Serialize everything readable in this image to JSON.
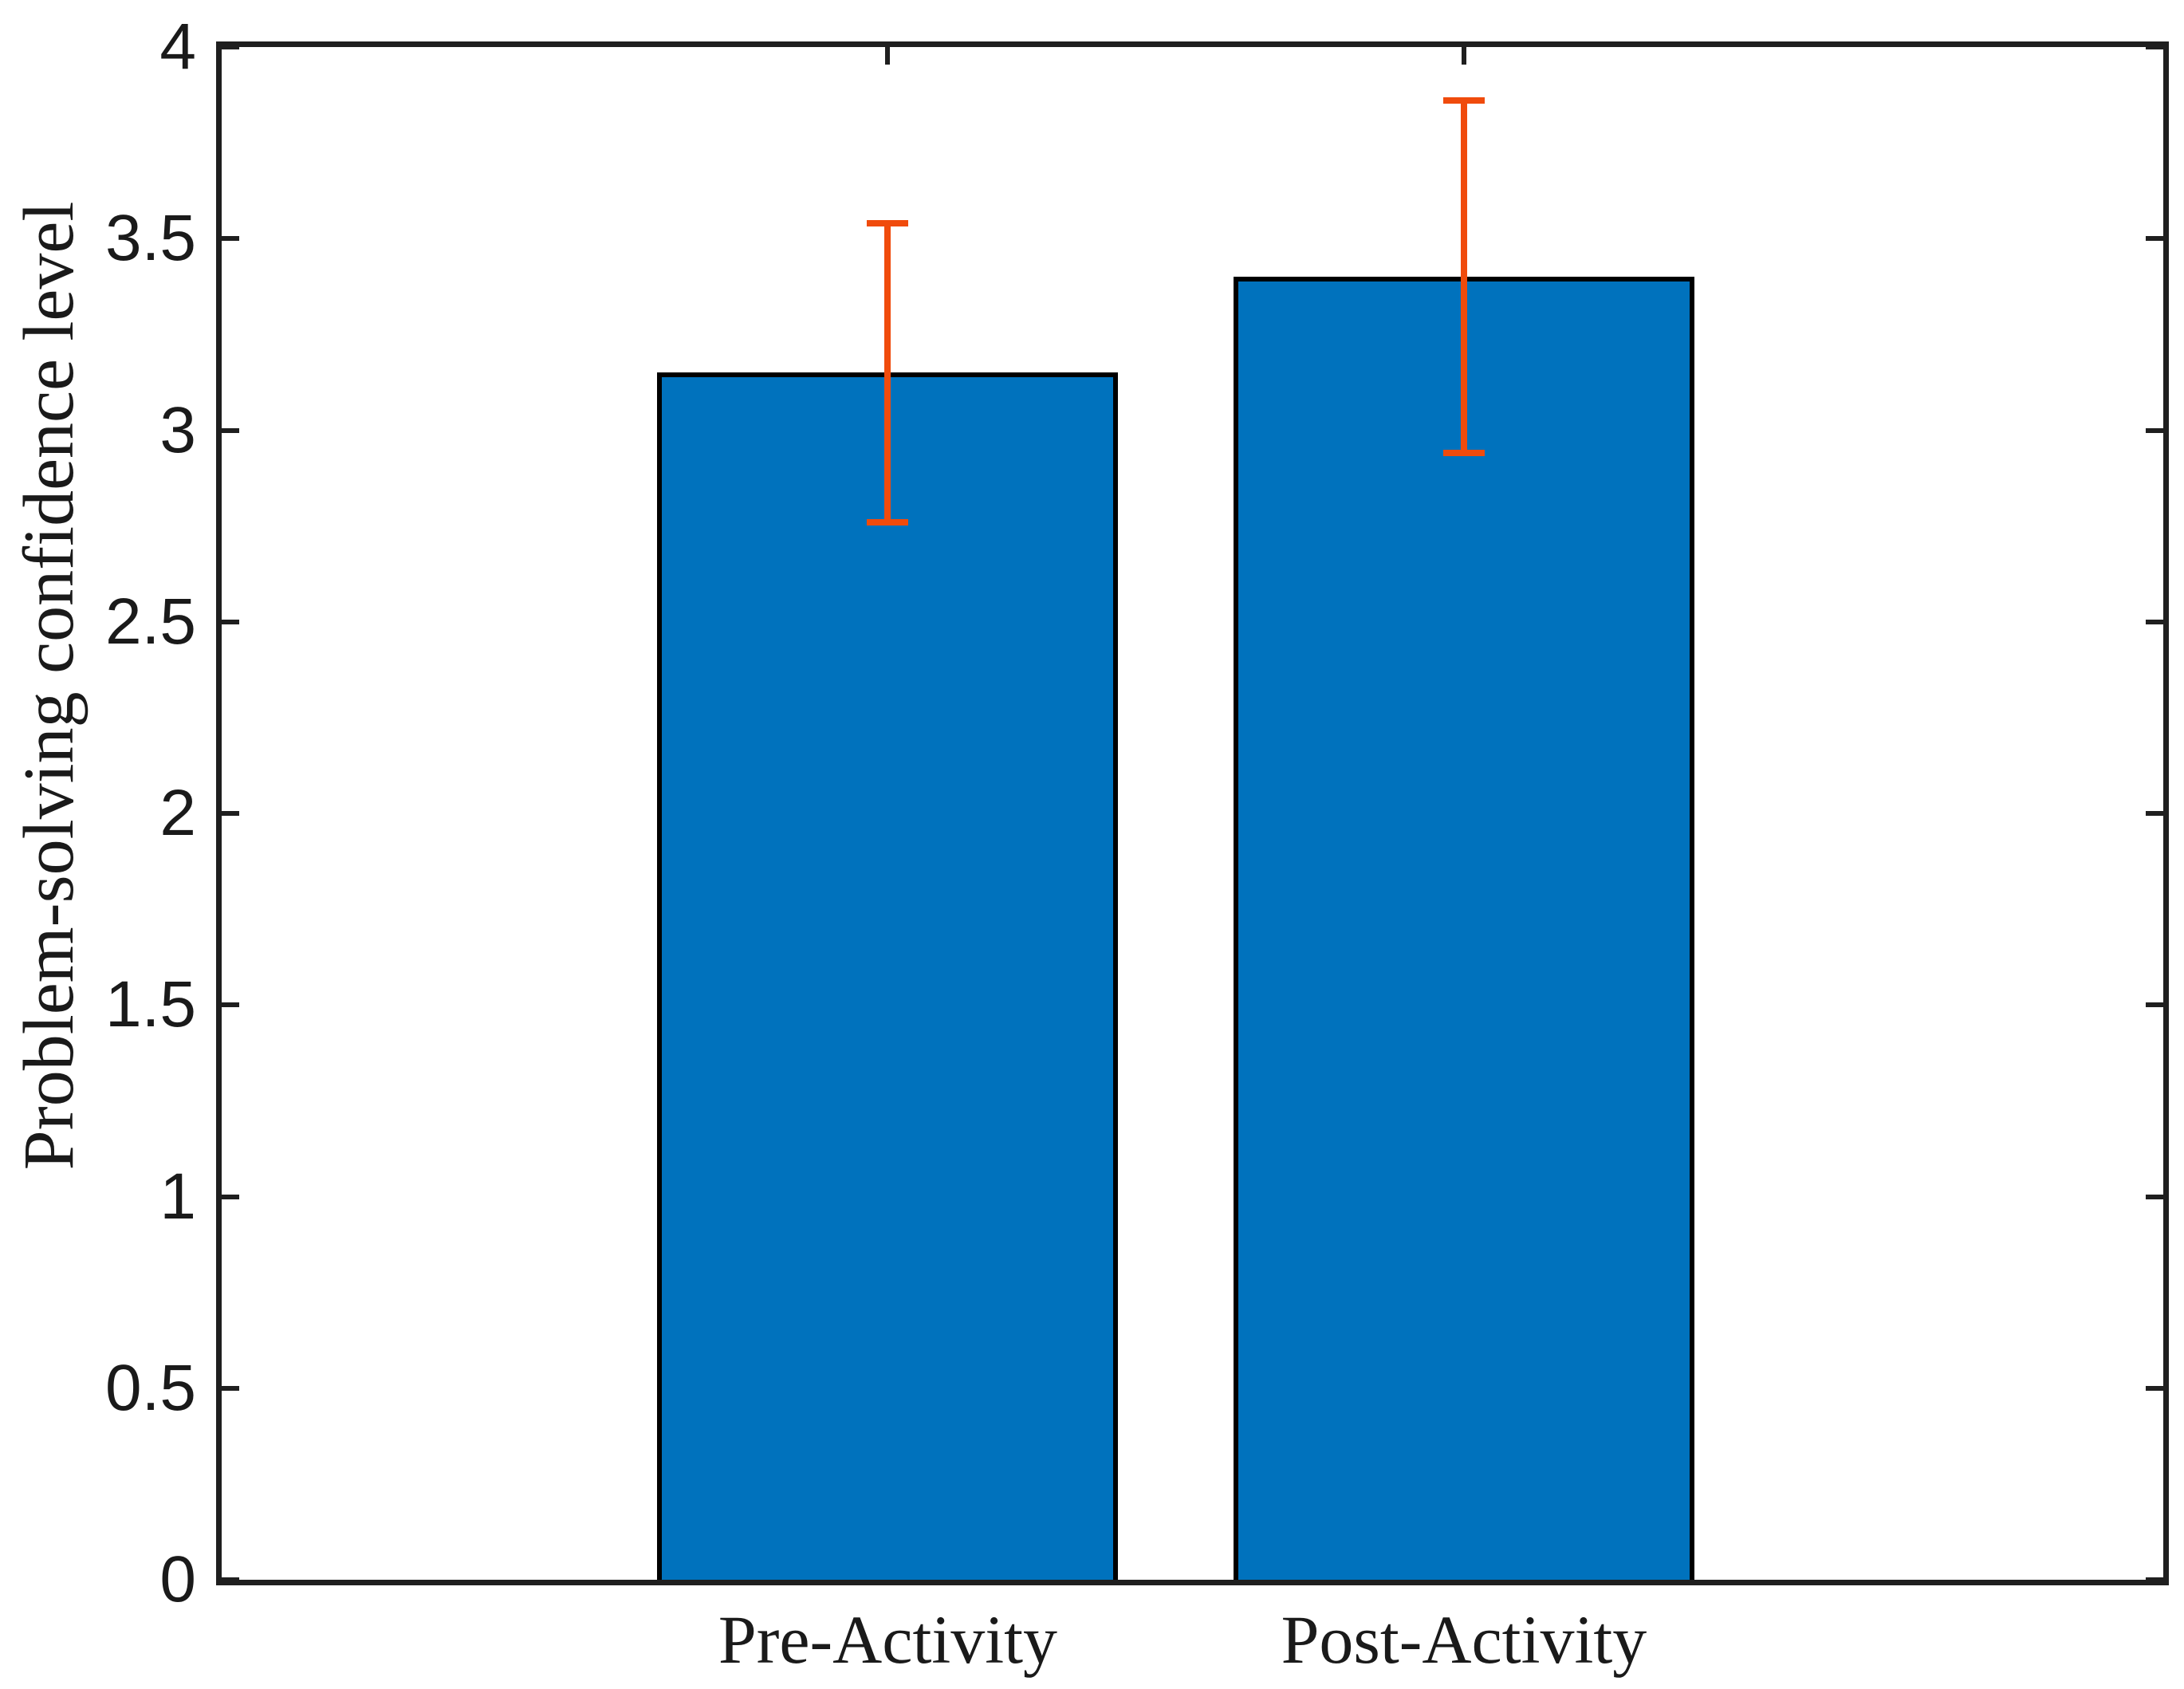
{
  "figure": {
    "background_color": "#ffffff",
    "axis_color": "#1f1f1f",
    "text_color": "#1a1a1a"
  },
  "chart_data": {
    "type": "bar",
    "title": "",
    "xlabel": "",
    "ylabel": "Problem-solving confidence level",
    "categories": [
      "Pre-Activity",
      "Post-Activity"
    ],
    "values": [
      3.15,
      3.4
    ],
    "error_bars": [
      0.39,
      0.46
    ],
    "error_ranges": [
      [
        2.76,
        3.53
      ],
      [
        2.94,
        3.86
      ]
    ],
    "ylim": [
      0,
      4
    ],
    "yticks": [
      0,
      0.5,
      1,
      1.5,
      2,
      2.5,
      3,
      3.5,
      4
    ],
    "ytick_labels": [
      "0",
      "0.5",
      "1",
      "1.5",
      "2",
      "2.5",
      "3",
      "3.5",
      "4"
    ],
    "grid": false,
    "legend": null,
    "bar_fill_color": "#0072BD",
    "bar_edge_color": "#000000",
    "error_bar_color": "#F04B0C",
    "tick_direction": "in",
    "box": true
  }
}
